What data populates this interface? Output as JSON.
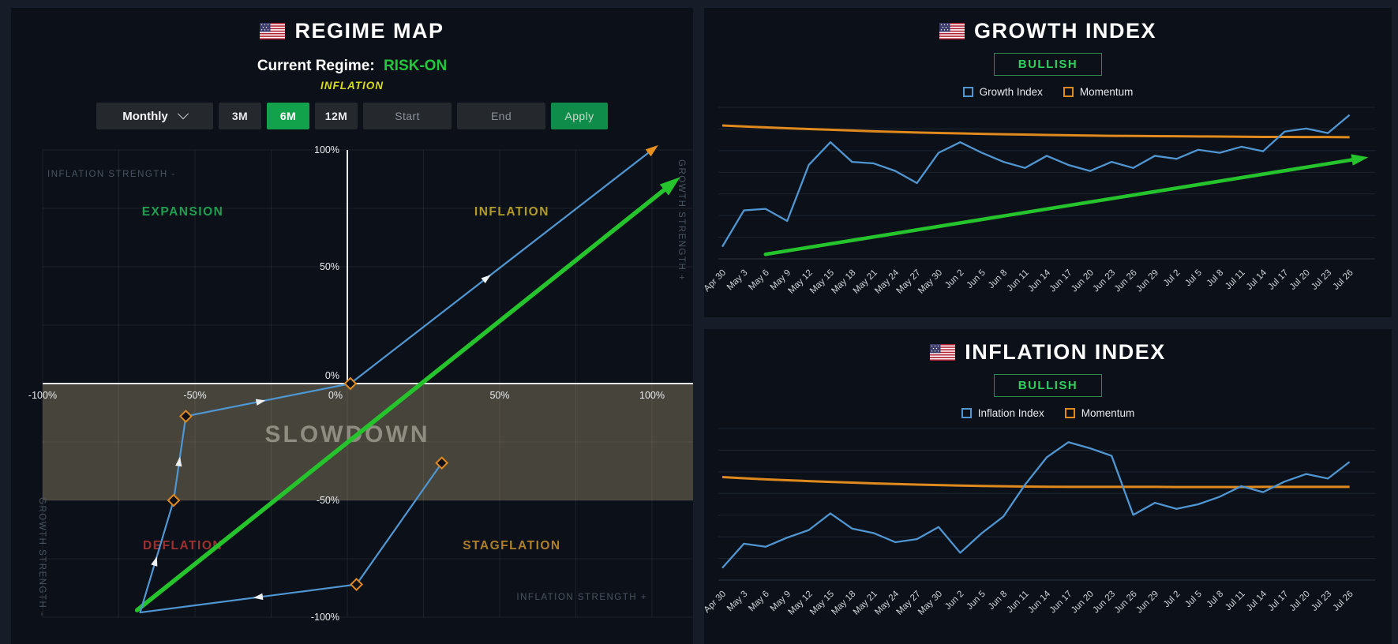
{
  "colors": {
    "accent_green": "#22c93a",
    "bullish_green": "#2fcf5c",
    "index_blue": "#4f96d2",
    "momentum_orange": "#e0891c",
    "trend_green": "#25c42d",
    "active_button_green": "#12a24c"
  },
  "regime_panel": {
    "flag_icon": "us-flag-icon",
    "title": "REGIME MAP",
    "current_regime_label": "Current Regime:",
    "current_regime_value": "RISK-ON",
    "current_sub_regime": "INFLATION",
    "controls": {
      "interval_value": "Monthly",
      "range_buttons": [
        "3M",
        "6M",
        "12M"
      ],
      "active_range": "6M",
      "start_label": "Start",
      "end_label": "End",
      "apply_label": "Apply"
    },
    "chart_data": {
      "type": "scatter",
      "xlim": [
        -100,
        100
      ],
      "ylim": [
        -100,
        100
      ],
      "x_ticks": [
        "-100%",
        "-50%",
        "0%",
        "50%",
        "100%"
      ],
      "y_ticks": [
        "100%",
        "50%",
        "0%",
        "-50%",
        "-100%"
      ],
      "axis_labels": {
        "top_left": "INFLATION STRENGTH -",
        "bottom_right": "INFLATION STRENGTH +",
        "right": "GROWTH STRENGTH +",
        "left": "GROWTH STRENGTH -"
      },
      "quadrants": [
        {
          "label": "EXPANSION",
          "x": -54,
          "y": 72,
          "color": "#1f9e50"
        },
        {
          "label": "INFLATION",
          "x": 54,
          "y": 72,
          "color": "#b09a28"
        },
        {
          "label": "DEFLATION",
          "x": -54,
          "y": -71,
          "color": "#a03030"
        },
        {
          "label": "STAGFLATION",
          "x": 54,
          "y": -71,
          "color": "#b07f2a"
        },
        {
          "label": "SLOWDOWN",
          "x": 0,
          "y": -25,
          "color": "#8f8c81"
        }
      ],
      "slowdown_band": {
        "from_y": 0,
        "to_y": -50,
        "fill": "rgba(160,145,110,0.40)"
      },
      "trajectory": {
        "color": "#4f96d2",
        "points": [
          [
            31,
            -34
          ],
          [
            3,
            -86
          ],
          [
            -68,
            -98
          ],
          [
            -57,
            -50
          ],
          [
            -53,
            -14
          ],
          [
            1,
            0
          ],
          [
            100,
            100
          ]
        ],
        "diamond_points": [
          0,
          1,
          3,
          4,
          5
        ],
        "diamond_color": "#e0891c",
        "end_arrow_color": "#e8901e",
        "direction_marker_color": "#eef1f4"
      },
      "trend_arrow": {
        "color": "#25c42d",
        "from": [
          -69,
          -97
        ],
        "to": [
          106,
          85
        ]
      }
    }
  },
  "growth_panel": {
    "flag_icon": "us-flag-icon",
    "title": "GROWTH INDEX",
    "badge": "BULLISH",
    "chart_data": {
      "type": "line",
      "grid": "horizontal",
      "ylim": [
        0,
        100
      ],
      "legend_position": "top",
      "categories": [
        "Apr 30",
        "May 3",
        "May 6",
        "May 9",
        "May 12",
        "May 15",
        "May 18",
        "May 21",
        "May 24",
        "May 27",
        "May 30",
        "Jun 2",
        "Jun 5",
        "Jun 8",
        "Jun 11",
        "Jun 14",
        "Jun 17",
        "Jun 20",
        "Jun 23",
        "Jun 26",
        "Jun 29",
        "Jul 2",
        "Jul 5",
        "Jul 8",
        "Jul 11",
        "Jul 14",
        "Jul 17",
        "Jul 20",
        "Jul 23",
        "Jul 26"
      ],
      "series": [
        {
          "name": "Growth Index",
          "color": "#4f96d2",
          "values": [
            8,
            32,
            33,
            25,
            62,
            77,
            64,
            63,
            58,
            50,
            70,
            77,
            70,
            64,
            60,
            68,
            62,
            58,
            64,
            60,
            68,
            66,
            72,
            70,
            74,
            71,
            84,
            86,
            83,
            95
          ]
        },
        {
          "name": "Momentum",
          "color": "#e0891c",
          "values": [
            88,
            87.4,
            86.8,
            86.2,
            85.7,
            85.2,
            84.7,
            84.2,
            83.8,
            83.4,
            83.1,
            82.8,
            82.5,
            82.2,
            82,
            81.8,
            81.6,
            81.4,
            81.2,
            81.1,
            81,
            80.9,
            80.8,
            80.7,
            80.6,
            80.5,
            80.5,
            80.4,
            80.4,
            80.3
          ]
        }
      ],
      "trend_arrow": {
        "color": "#25c42d",
        "from_index": 2,
        "from_value": 3,
        "to_index": 29.4,
        "to_value": 66
      }
    }
  },
  "inflation_panel": {
    "flag_icon": "us-flag-icon",
    "title": "INFLATION INDEX",
    "badge": "BULLISH",
    "chart_data": {
      "type": "line",
      "grid": "horizontal",
      "ylim": [
        0,
        100
      ],
      "legend_position": "top",
      "categories": [
        "Apr 30",
        "May 3",
        "May 6",
        "May 9",
        "May 12",
        "May 15",
        "May 18",
        "May 21",
        "May 24",
        "May 27",
        "May 30",
        "Jun 2",
        "Jun 5",
        "Jun 8",
        "Jun 11",
        "Jun 14",
        "Jun 17",
        "Jun 20",
        "Jun 23",
        "Jun 26",
        "Jun 29",
        "Jul 2",
        "Jul 5",
        "Jul 8",
        "Jul 11",
        "Jul 14",
        "Jul 17",
        "Jul 20",
        "Jul 23",
        "Jul 26"
      ],
      "series": [
        {
          "name": "Inflation Index",
          "color": "#4f96d2",
          "values": [
            8,
            24,
            22,
            28,
            33,
            44,
            34,
            31,
            25,
            27,
            35,
            18,
            31,
            42,
            63,
            81,
            91,
            87,
            82,
            43,
            51,
            47,
            50,
            55,
            62,
            58,
            65,
            70,
            67,
            78
          ]
        },
        {
          "name": "Momentum",
          "color": "#e0891c",
          "values": [
            68,
            67.2,
            66.5,
            65.9,
            65.3,
            64.8,
            64.3,
            63.8,
            63.4,
            63,
            62.7,
            62.4,
            62.1,
            61.9,
            61.7,
            61.6,
            61.5,
            61.5,
            61.5,
            61.5,
            61.5,
            61.4,
            61.4,
            61.4,
            61.4,
            61.5,
            61.5,
            61.5,
            61.5,
            61.5
          ]
        }
      ]
    }
  }
}
